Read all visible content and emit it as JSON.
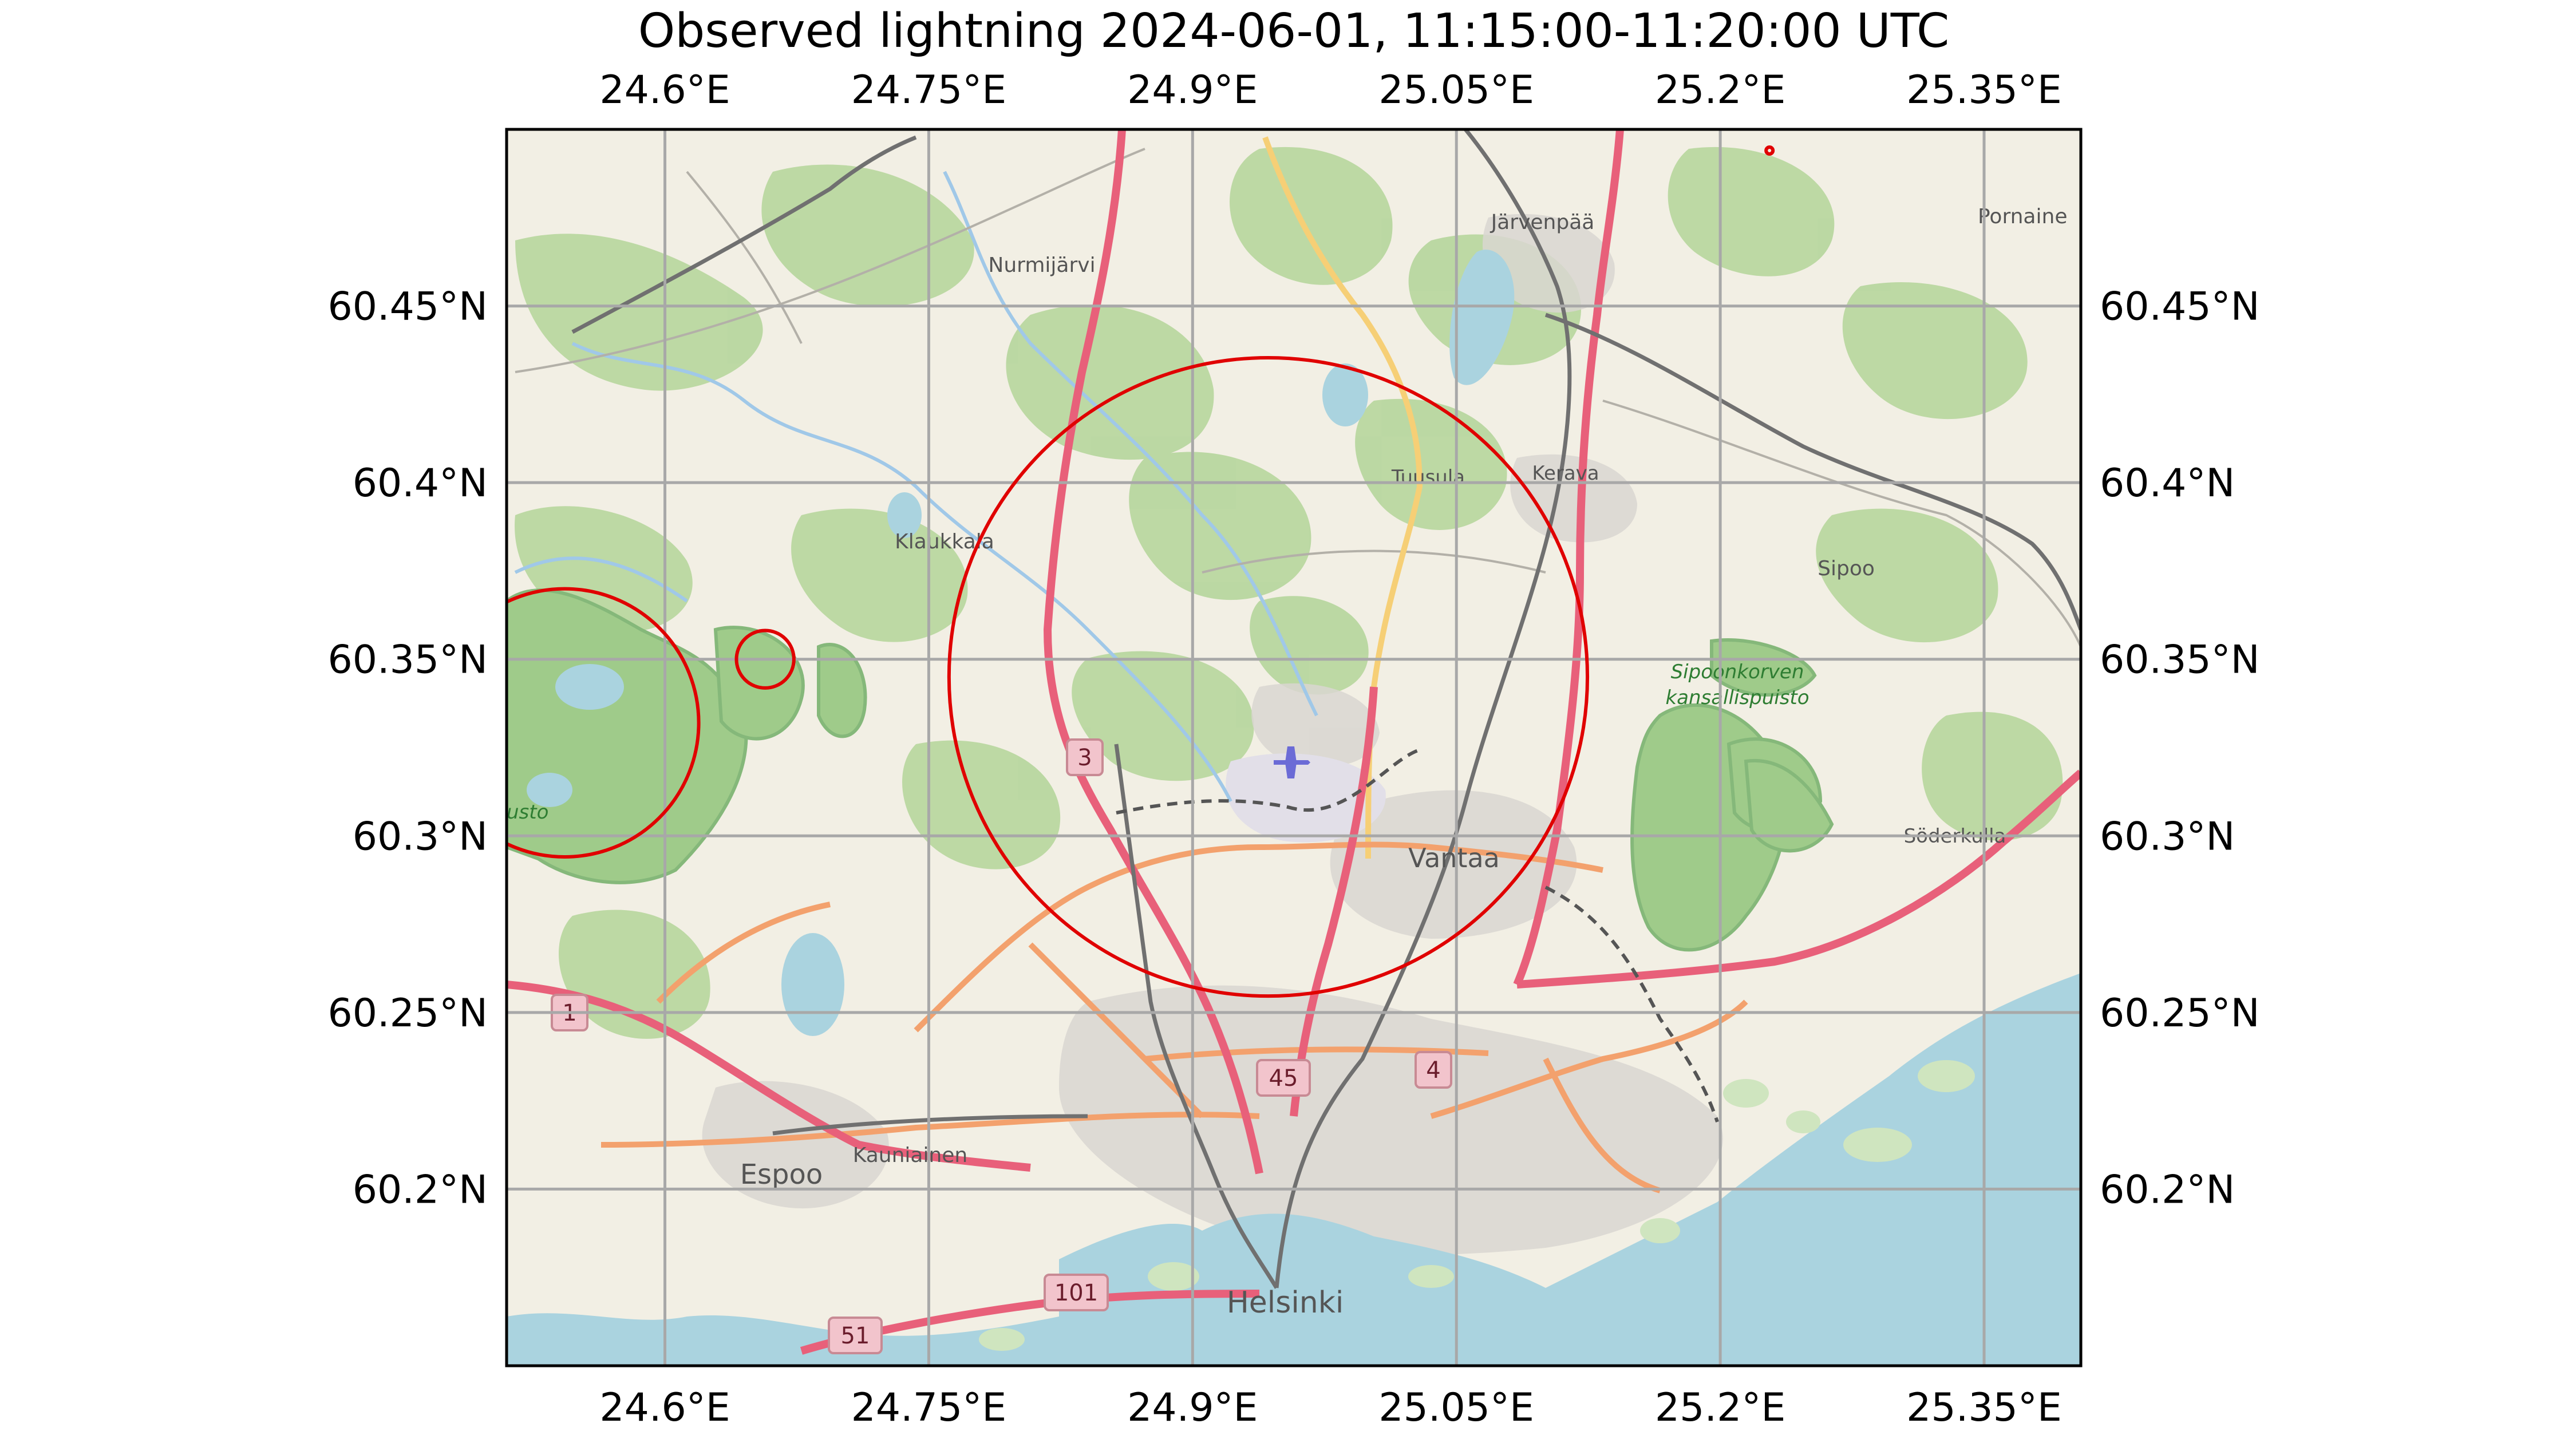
{
  "title": "Observed lightning 2024-06-01, 11:15:00-11:20:00 UTC",
  "lon_ticks": [
    "24.6°E",
    "24.75°E",
    "24.9°E",
    "25.05°E",
    "25.2°E",
    "25.35°E"
  ],
  "lat_ticks": [
    "60.45°N",
    "60.4°N",
    "60.35°N",
    "60.3°N",
    "60.25°N",
    "60.2°N"
  ],
  "places": {
    "jarvenpaa": "Järvenpää",
    "pornainen": "Pornaine",
    "nurmijarvi": "Nurmijärvi",
    "tuusula": "Tuusula",
    "kerava": "Kerava",
    "klaukkala": "Klaukkala",
    "sipoo": "Sipoo",
    "sipoonkorpi_1": "Sipoonkorven",
    "sipoonkorpi_2": "kansallispuisto",
    "vantaa": "Vantaa",
    "soderkulla": "Söderkulla",
    "kauniainen": "Kauniainen",
    "espoo": "Espoo",
    "helsinki": "Helsinki",
    "park_fragment": "usto"
  },
  "road_numbers": [
    "3",
    "1",
    "45",
    "4",
    "101",
    "51"
  ],
  "colors": {
    "land": "#f2efe4",
    "forest": "#b9d7a0",
    "water": "#aad3df",
    "motorway": "#e8607a",
    "trunk": "#f3a16d",
    "secondary": "#f6cf76",
    "rail": "#707070",
    "grid": "#a8a8a8",
    "lightning": "#e00000"
  },
  "chart_data": {
    "type": "map",
    "xlim": [
      24.51,
      25.405
    ],
    "ylim": [
      60.15,
      60.5
    ],
    "lightning_events": [
      {
        "lon": 24.943,
        "lat": 60.345,
        "radius_km": 10.0
      },
      {
        "lon": 24.543,
        "lat": 60.332,
        "radius_km": 4.2
      },
      {
        "lon": 24.657,
        "lat": 60.35,
        "radius_km": 0.9
      },
      {
        "lon": 25.228,
        "lat": 60.494,
        "radius_km": 0.1
      }
    ]
  }
}
